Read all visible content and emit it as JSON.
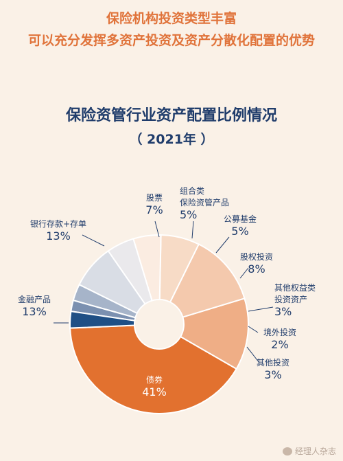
{
  "header": {
    "line1": "保险机构投资类型丰富",
    "line2": "可以充分发挥多资产投资及资产分散化配置的优势"
  },
  "watermark": {
    "text": "经理人杂志",
    "icon": "weibo-icon"
  },
  "chart_data": {
    "type": "pie",
    "title": "保险资管行业资产配置比例情况",
    "subtitle": "（ 2021年 ）",
    "donut": true,
    "slices": [
      {
        "label": [
          "债券"
        ],
        "pct": "41%",
        "value": 41,
        "color": "#e2712f",
        "text_color": "#ffffff"
      },
      {
        "label": [
          "金融产品"
        ],
        "pct": "13%",
        "value": 13,
        "color": "#efae86",
        "text_color": "#1f3c6b"
      },
      {
        "label": [
          "银行存款+存单"
        ],
        "pct": "13%",
        "value": 13,
        "color": "#f4c9ad",
        "text_color": "#1f3c6b"
      },
      {
        "label": [
          "股票"
        ],
        "pct": "7%",
        "value": 7,
        "color": "#f7dbc6",
        "text_color": "#1f3c6b"
      },
      {
        "label": [
          "组合类",
          "保险资管产品"
        ],
        "pct": "5%",
        "value": 5,
        "color": "#fbece1",
        "text_color": "#1f3c6b"
      },
      {
        "label": [
          "公募基金"
        ],
        "pct": "5%",
        "value": 5,
        "color": "#eae9ec",
        "text_color": "#1f3c6b"
      },
      {
        "label": [
          "股权投资"
        ],
        "pct": "8%",
        "value": 8,
        "color": "#d9dde5",
        "text_color": "#1f3c6b"
      },
      {
        "label": [
          "其他权益类",
          "投资资产"
        ],
        "pct": "3%",
        "value": 3,
        "color": "#a6b4c9",
        "text_color": "#1f3c6b"
      },
      {
        "label": [
          "境外投资"
        ],
        "pct": "2%",
        "value": 2,
        "color": "#7b90b0",
        "text_color": "#1f3c6b"
      },
      {
        "label": [
          "其他投资"
        ],
        "pct": "3%",
        "value": 3,
        "color": "#1f4f85",
        "text_color": "#1f3c6b"
      }
    ]
  }
}
